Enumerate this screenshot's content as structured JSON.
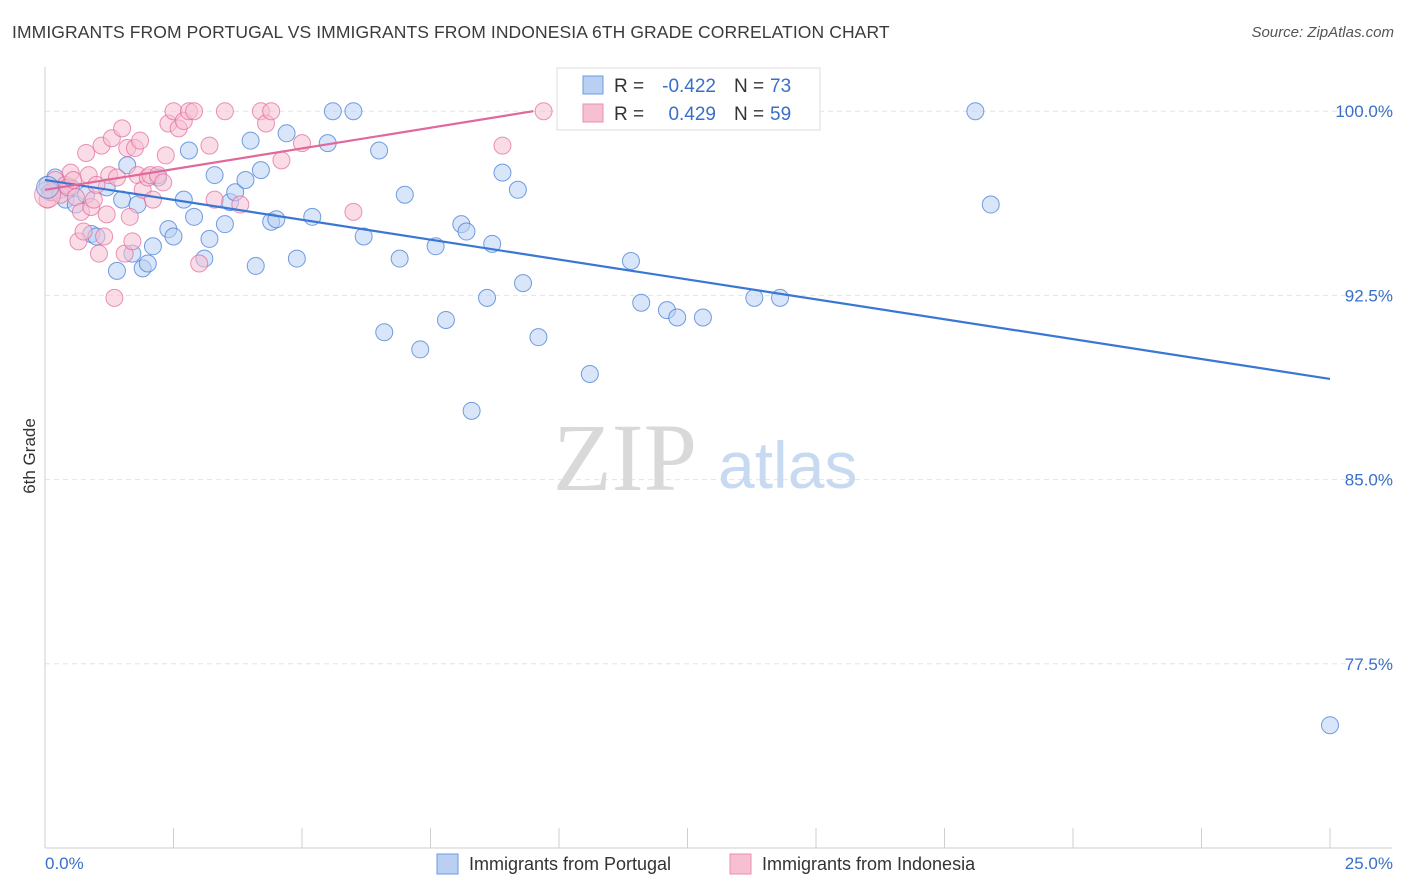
{
  "title": "IMMIGRANTS FROM PORTUGAL VS IMMIGRANTS FROM INDONESIA 6TH GRADE CORRELATION CHART",
  "source": "Source: ZipAtlas.com",
  "watermark": {
    "zip": "ZIP",
    "atlas": "atlas"
  },
  "colors": {
    "blue": "#3a77d4",
    "blue_fill": "#b9d0f2",
    "pink": "#e2679a",
    "pink_fill": "#f6bfd2",
    "accent_text": "#3a6fc7"
  },
  "stats": [
    {
      "r_label": "R =",
      "r_value": "-0.422",
      "n_label": "N =",
      "n_value": "73"
    },
    {
      "r_label": "R =",
      "r_value": "0.429",
      "n_label": "N =",
      "n_value": "59"
    }
  ],
  "chart_data": {
    "type": "scatter",
    "ylabel": "6th Grade",
    "xlim": [
      0,
      25
    ],
    "ylim": [
      70,
      101.8
    ],
    "x_tick_labels": [
      {
        "x": 0,
        "label": "0.0%"
      },
      {
        "x": 25,
        "label": "25.0%"
      }
    ],
    "y_ticks": [
      {
        "y": 100,
        "label": "100.0%"
      },
      {
        "y": 92.5,
        "label": "92.5%"
      },
      {
        "y": 85,
        "label": "85.0%"
      },
      {
        "y": 77.5,
        "label": "77.5%"
      }
    ],
    "legend_position": "bottom-center",
    "series": [
      {
        "name": "Immigrants from Portugal",
        "color": "#3a77d4",
        "fill": "#b9d0f2",
        "trend": {
          "x": [
            0,
            25
          ],
          "y": [
            97.2,
            89.1
          ]
        },
        "points": [
          [
            0.05,
            97.0
          ],
          [
            0.1,
            96.7
          ],
          [
            0.2,
            97.3
          ],
          [
            0.3,
            96.8
          ],
          [
            0.4,
            96.4
          ],
          [
            0.5,
            96.9
          ],
          [
            0.6,
            96.2
          ],
          [
            0.8,
            96.6
          ],
          [
            0.9,
            95.0
          ],
          [
            1.0,
            94.9
          ],
          [
            1.2,
            96.9
          ],
          [
            1.4,
            93.5
          ],
          [
            1.5,
            96.4
          ],
          [
            1.6,
            97.8
          ],
          [
            1.7,
            94.2
          ],
          [
            1.8,
            96.2
          ],
          [
            1.9,
            93.6
          ],
          [
            2.0,
            93.8
          ],
          [
            2.1,
            94.5
          ],
          [
            2.2,
            97.3
          ],
          [
            2.4,
            95.2
          ],
          [
            2.5,
            94.9
          ],
          [
            2.7,
            96.4
          ],
          [
            2.8,
            98.4
          ],
          [
            2.9,
            95.7
          ],
          [
            3.1,
            94.0
          ],
          [
            3.2,
            94.8
          ],
          [
            3.3,
            97.4
          ],
          [
            3.5,
            95.4
          ],
          [
            3.6,
            96.3
          ],
          [
            3.7,
            96.7
          ],
          [
            3.9,
            97.2
          ],
          [
            4.0,
            98.8
          ],
          [
            4.1,
            93.7
          ],
          [
            4.2,
            97.6
          ],
          [
            4.4,
            95.5
          ],
          [
            4.5,
            95.6
          ],
          [
            4.7,
            99.1
          ],
          [
            4.9,
            94.0
          ],
          [
            5.2,
            95.7
          ],
          [
            5.5,
            98.7
          ],
          [
            5.6,
            100.0
          ],
          [
            6.0,
            100.0
          ],
          [
            6.2,
            94.9
          ],
          [
            6.5,
            98.4
          ],
          [
            6.6,
            91.0
          ],
          [
            6.9,
            94.0
          ],
          [
            7.0,
            96.6
          ],
          [
            7.3,
            90.3
          ],
          [
            7.6,
            94.5
          ],
          [
            7.8,
            91.5
          ],
          [
            8.1,
            95.4
          ],
          [
            8.2,
            95.1
          ],
          [
            8.3,
            87.8
          ],
          [
            8.6,
            92.4
          ],
          [
            8.7,
            94.6
          ],
          [
            8.9,
            97.5
          ],
          [
            9.2,
            96.8
          ],
          [
            9.3,
            93.0
          ],
          [
            9.6,
            90.8
          ],
          [
            10.6,
            89.3
          ],
          [
            11.0,
            100.0
          ],
          [
            11.4,
            93.9
          ],
          [
            11.6,
            92.2
          ],
          [
            12.1,
            91.9
          ],
          [
            12.3,
            91.6
          ],
          [
            12.8,
            91.6
          ],
          [
            13.8,
            92.4
          ],
          [
            14.3,
            92.4
          ],
          [
            14.5,
            100.0
          ],
          [
            18.1,
            100.0
          ],
          [
            18.4,
            96.2
          ],
          [
            25.0,
            75.0
          ]
        ]
      },
      {
        "name": "Immigrants from Indonesia",
        "color": "#e2679a",
        "fill": "#f6bfd2",
        "trend": {
          "x": [
            0,
            9.5
          ],
          "y": [
            96.8,
            100.0
          ]
        },
        "points": [
          [
            0.05,
            96.4
          ],
          [
            0.15,
            96.7
          ],
          [
            0.2,
            97.2
          ],
          [
            0.3,
            96.6
          ],
          [
            0.4,
            97.0
          ],
          [
            0.45,
            96.9
          ],
          [
            0.5,
            97.5
          ],
          [
            0.55,
            97.2
          ],
          [
            0.6,
            96.5
          ],
          [
            0.65,
            94.7
          ],
          [
            0.7,
            95.9
          ],
          [
            0.75,
            95.1
          ],
          [
            0.8,
            98.3
          ],
          [
            0.85,
            97.4
          ],
          [
            0.9,
            96.1
          ],
          [
            0.95,
            96.4
          ],
          [
            1.0,
            97.0
          ],
          [
            1.05,
            94.2
          ],
          [
            1.1,
            98.6
          ],
          [
            1.15,
            94.9
          ],
          [
            1.2,
            95.8
          ],
          [
            1.25,
            97.4
          ],
          [
            1.3,
            98.9
          ],
          [
            1.35,
            92.4
          ],
          [
            1.4,
            97.3
          ],
          [
            1.5,
            99.3
          ],
          [
            1.55,
            94.2
          ],
          [
            1.6,
            98.5
          ],
          [
            1.65,
            95.7
          ],
          [
            1.7,
            94.7
          ],
          [
            1.75,
            98.5
          ],
          [
            1.8,
            97.4
          ],
          [
            1.85,
            98.8
          ],
          [
            1.9,
            96.8
          ],
          [
            2.0,
            97.3
          ],
          [
            2.05,
            97.4
          ],
          [
            2.1,
            96.4
          ],
          [
            2.2,
            97.4
          ],
          [
            2.3,
            97.1
          ],
          [
            2.35,
            98.2
          ],
          [
            2.4,
            99.5
          ],
          [
            2.5,
            100.0
          ],
          [
            2.6,
            99.3
          ],
          [
            2.7,
            99.6
          ],
          [
            2.8,
            100.0
          ],
          [
            2.9,
            100.0
          ],
          [
            3.0,
            93.8
          ],
          [
            3.2,
            98.6
          ],
          [
            3.5,
            100.0
          ],
          [
            3.3,
            96.4
          ],
          [
            3.8,
            96.2
          ],
          [
            4.2,
            100.0
          ],
          [
            4.3,
            99.5
          ],
          [
            4.4,
            100.0
          ],
          [
            4.6,
            98.0
          ],
          [
            5.0,
            98.7
          ],
          [
            6.0,
            95.9
          ],
          [
            8.9,
            98.6
          ],
          [
            9.7,
            100.0
          ]
        ]
      }
    ]
  }
}
